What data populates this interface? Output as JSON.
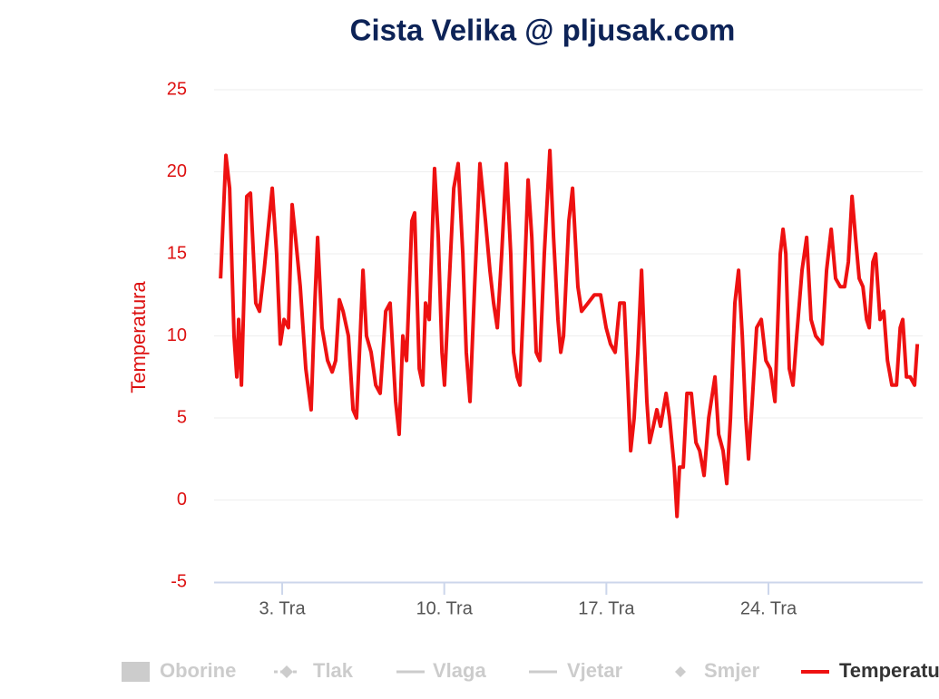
{
  "chart_data": {
    "type": "line",
    "title": "Cista Velika @ pljusak.com",
    "y_axis_label": "Temperatura",
    "xlim": [
      0.06,
      30.66
    ],
    "xticks": [
      {
        "value": 3,
        "label": "3. Tra"
      },
      {
        "value": 10,
        "label": "10. Tra"
      },
      {
        "value": 17,
        "label": "17. Tra"
      },
      {
        "value": 24,
        "label": "24. Tra"
      }
    ],
    "ylim": [
      -5,
      25
    ],
    "yticks": [
      -5,
      0,
      5,
      10,
      15,
      20,
      25
    ],
    "grid": true,
    "hidden_series": [
      {
        "name": "Oborine"
      },
      {
        "name": "Tlak"
      },
      {
        "name": "Vlaga"
      },
      {
        "name": "Vjetar"
      },
      {
        "name": "Smjer"
      }
    ],
    "series": [
      {
        "name": "Temperatura",
        "color": "#ee1111",
        "x": [
          0.34,
          0.57,
          0.73,
          0.92,
          1.04,
          1.12,
          1.24,
          1.47,
          1.63,
          1.86,
          2.02,
          2.22,
          2.57,
          2.76,
          2.92,
          3.08,
          3.27,
          3.43,
          3.59,
          3.78,
          4.02,
          4.25,
          4.41,
          4.53,
          4.72,
          4.96,
          5.16,
          5.31,
          5.47,
          5.63,
          5.86,
          6.06,
          6.21,
          6.37,
          6.49,
          6.64,
          6.84,
          7.04,
          7.23,
          7.47,
          7.66,
          7.9,
          8.05,
          8.21,
          8.37,
          8.6,
          8.72,
          8.92,
          9.07,
          9.19,
          9.35,
          9.58,
          9.74,
          9.9,
          10.01,
          10.17,
          10.41,
          10.6,
          10.8,
          10.95,
          11.11,
          11.31,
          11.54,
          11.78,
          11.97,
          12.13,
          12.29,
          12.48,
          12.68,
          12.87,
          12.99,
          13.15,
          13.27,
          13.42,
          13.62,
          13.78,
          13.97,
          14.13,
          14.32,
          14.56,
          14.72,
          14.91,
          15.03,
          15.15,
          15.38,
          15.54,
          15.77,
          15.93,
          16.21,
          16.48,
          16.75,
          16.99,
          17.18,
          17.38,
          17.58,
          17.77,
          17.93,
          18.05,
          18.2,
          18.36,
          18.52,
          18.63,
          18.75,
          18.87,
          19.03,
          19.18,
          19.34,
          19.58,
          19.73,
          19.93,
          20.05,
          20.16,
          20.32,
          20.48,
          20.67,
          20.87,
          21.03,
          21.22,
          21.42,
          21.69,
          21.85,
          22.04,
          22.2,
          22.36,
          22.55,
          22.71,
          22.87,
          23.02,
          23.14,
          23.3,
          23.49,
          23.69,
          23.89,
          24.08,
          24.28,
          24.51,
          24.63,
          24.75,
          24.9,
          25.06,
          25.22,
          25.45,
          25.65,
          25.84,
          26.04,
          26.32,
          26.51,
          26.71,
          26.9,
          27.1,
          27.29,
          27.45,
          27.61,
          27.76,
          27.92,
          28.08,
          28.24,
          28.35,
          28.51,
          28.63,
          28.82,
          28.98,
          29.14,
          29.33,
          29.53,
          29.69,
          29.8,
          29.96,
          30.12,
          30.31,
          30.43
        ],
        "values": [
          13.5,
          21,
          19,
          10,
          7.5,
          11,
          7,
          18.5,
          18.7,
          12,
          11.5,
          14,
          19,
          15,
          9.5,
          11,
          10.5,
          18,
          15.8,
          13,
          8,
          5.5,
          12,
          16,
          10.5,
          8.5,
          7.8,
          8.5,
          12.2,
          11.5,
          10,
          5.5,
          5,
          10,
          14,
          10,
          9,
          7,
          6.5,
          11.5,
          12,
          6,
          4,
          10,
          8.5,
          17,
          17.5,
          8,
          7,
          12,
          11,
          20.2,
          16,
          9,
          7,
          12,
          19,
          20.5,
          15,
          9,
          6,
          13,
          20.5,
          17,
          14,
          12,
          10.5,
          15,
          20.5,
          15,
          9,
          7.5,
          7,
          12,
          19.5,
          16,
          9,
          8.5,
          15,
          21.3,
          16,
          11,
          9,
          10,
          17,
          19,
          13,
          11.5,
          12,
          12.5,
          12.5,
          10.5,
          9.5,
          9,
          12,
          12,
          7,
          3,
          5,
          9,
          14,
          10,
          6,
          3.5,
          4.5,
          5.5,
          4.5,
          6.5,
          5,
          2,
          -1,
          2,
          2,
          6.5,
          6.5,
          3.5,
          3,
          1.5,
          5,
          7.5,
          4,
          3,
          1,
          5,
          12,
          14,
          10,
          5,
          2.5,
          6,
          10.5,
          11,
          8.5,
          8,
          6,
          15,
          16.5,
          15,
          8,
          7,
          10,
          14,
          16,
          11,
          10,
          9.5,
          14,
          16.5,
          13.5,
          13,
          13,
          14.5,
          18.5,
          16,
          13.5,
          13,
          11,
          10.5,
          14.5,
          15,
          11,
          11.5,
          8.5,
          7,
          7,
          10.5,
          11,
          7.5,
          7.5,
          7,
          9.5
        ]
      }
    ]
  }
}
